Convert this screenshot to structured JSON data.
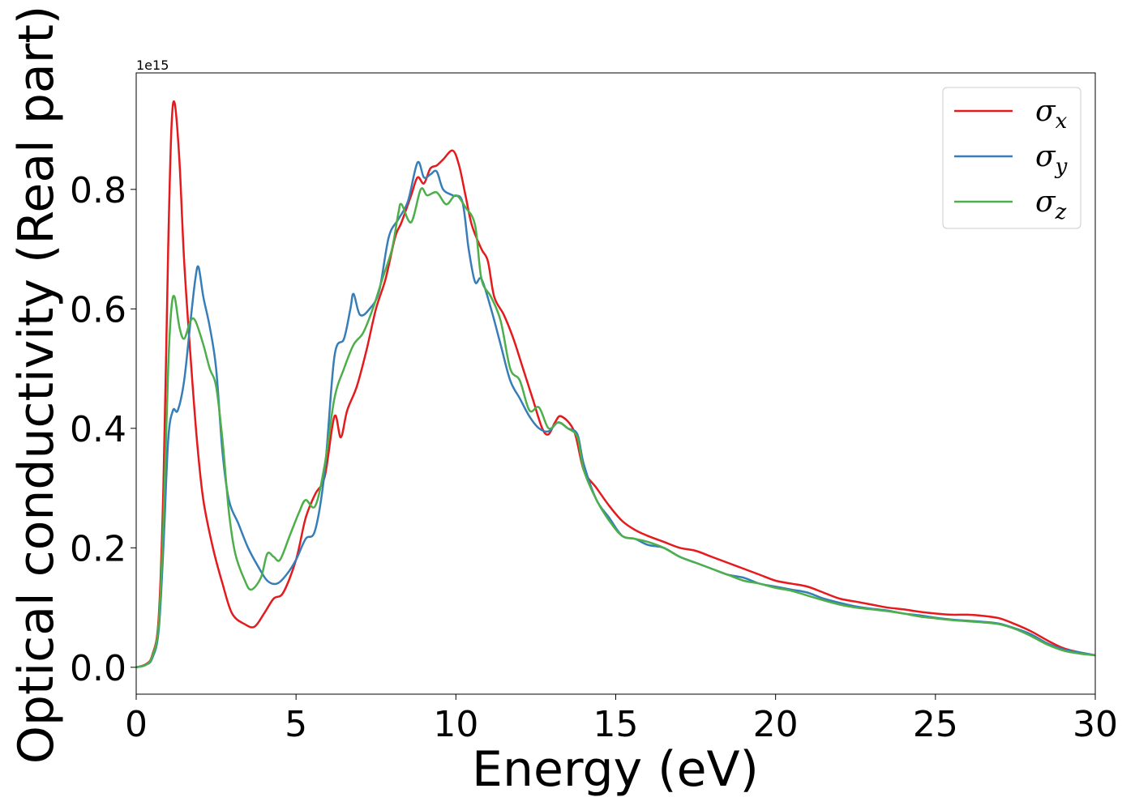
{
  "chart_data": {
    "type": "line",
    "title": "",
    "xlabel": "Energy (eV)",
    "ylabel": "Optical conductivity (Real part)",
    "y_offset_label": "1e15",
    "xlim": [
      0,
      30
    ],
    "ylim": [
      -0.045,
      0.995
    ],
    "xticks": [
      0,
      5,
      10,
      15,
      20,
      25,
      30
    ],
    "xtick_labels": [
      "0",
      "5",
      "10",
      "15",
      "20",
      "25",
      "30"
    ],
    "yticks": [
      0.0,
      0.2,
      0.4,
      0.6,
      0.8
    ],
    "ytick_labels": [
      "0.0",
      "0.2",
      "0.4",
      "0.6",
      "0.8"
    ],
    "grid": false,
    "legend_position": "top-right",
    "series": [
      {
        "name": "σx",
        "label_base": "σ",
        "label_sub": "x",
        "color": "#e41a1c",
        "points": [
          [
            0,
            0
          ],
          [
            0.3,
            0.005
          ],
          [
            0.5,
            0.02
          ],
          [
            0.7,
            0.08
          ],
          [
            0.85,
            0.3
          ],
          [
            1.0,
            0.7
          ],
          [
            1.1,
            0.9
          ],
          [
            1.2,
            0.945
          ],
          [
            1.35,
            0.85
          ],
          [
            1.5,
            0.68
          ],
          [
            1.7,
            0.52
          ],
          [
            1.9,
            0.38
          ],
          [
            2.1,
            0.28
          ],
          [
            2.4,
            0.2
          ],
          [
            2.7,
            0.14
          ],
          [
            3.0,
            0.09
          ],
          [
            3.4,
            0.072
          ],
          [
            3.7,
            0.068
          ],
          [
            4.0,
            0.09
          ],
          [
            4.3,
            0.115
          ],
          [
            4.6,
            0.125
          ],
          [
            5.0,
            0.18
          ],
          [
            5.3,
            0.25
          ],
          [
            5.6,
            0.29
          ],
          [
            5.9,
            0.32
          ],
          [
            6.2,
            0.42
          ],
          [
            6.4,
            0.385
          ],
          [
            6.6,
            0.43
          ],
          [
            6.9,
            0.47
          ],
          [
            7.2,
            0.53
          ],
          [
            7.5,
            0.6
          ],
          [
            7.8,
            0.65
          ],
          [
            8.1,
            0.72
          ],
          [
            8.3,
            0.745
          ],
          [
            8.6,
            0.79
          ],
          [
            8.8,
            0.82
          ],
          [
            9.0,
            0.81
          ],
          [
            9.2,
            0.835
          ],
          [
            9.4,
            0.84
          ],
          [
            9.6,
            0.85
          ],
          [
            9.9,
            0.865
          ],
          [
            10.1,
            0.84
          ],
          [
            10.3,
            0.79
          ],
          [
            10.5,
            0.74
          ],
          [
            10.8,
            0.7
          ],
          [
            11.0,
            0.68
          ],
          [
            11.2,
            0.62
          ],
          [
            11.5,
            0.59
          ],
          [
            11.8,
            0.55
          ],
          [
            12.1,
            0.5
          ],
          [
            12.4,
            0.45
          ],
          [
            12.7,
            0.4
          ],
          [
            12.9,
            0.39
          ],
          [
            13.1,
            0.41
          ],
          [
            13.3,
            0.42
          ],
          [
            13.7,
            0.395
          ],
          [
            14.0,
            0.33
          ],
          [
            14.4,
            0.3
          ],
          [
            14.8,
            0.27
          ],
          [
            15.2,
            0.245
          ],
          [
            15.6,
            0.23
          ],
          [
            16.0,
            0.22
          ],
          [
            16.5,
            0.21
          ],
          [
            17.0,
            0.2
          ],
          [
            17.5,
            0.195
          ],
          [
            18.0,
            0.185
          ],
          [
            18.5,
            0.175
          ],
          [
            19.0,
            0.165
          ],
          [
            19.5,
            0.155
          ],
          [
            20.0,
            0.145
          ],
          [
            20.5,
            0.14
          ],
          [
            21.0,
            0.135
          ],
          [
            21.5,
            0.125
          ],
          [
            22.0,
            0.115
          ],
          [
            22.5,
            0.11
          ],
          [
            23.0,
            0.105
          ],
          [
            23.5,
            0.1
          ],
          [
            24.0,
            0.097
          ],
          [
            24.5,
            0.093
          ],
          [
            25.0,
            0.09
          ],
          [
            25.5,
            0.088
          ],
          [
            26.0,
            0.088
          ],
          [
            26.5,
            0.086
          ],
          [
            27.0,
            0.082
          ],
          [
            27.5,
            0.072
          ],
          [
            28.0,
            0.06
          ],
          [
            28.5,
            0.045
          ],
          [
            29.0,
            0.032
          ],
          [
            29.5,
            0.025
          ],
          [
            30.0,
            0.02
          ]
        ]
      },
      {
        "name": "σy",
        "label_base": "σ",
        "label_sub": "y",
        "color": "#377eb8",
        "points": [
          [
            0,
            0
          ],
          [
            0.3,
            0.004
          ],
          [
            0.5,
            0.015
          ],
          [
            0.7,
            0.06
          ],
          [
            0.85,
            0.2
          ],
          [
            1.0,
            0.38
          ],
          [
            1.15,
            0.43
          ],
          [
            1.3,
            0.43
          ],
          [
            1.5,
            0.48
          ],
          [
            1.7,
            0.58
          ],
          [
            1.85,
            0.65
          ],
          [
            1.95,
            0.67
          ],
          [
            2.1,
            0.62
          ],
          [
            2.3,
            0.57
          ],
          [
            2.5,
            0.5
          ],
          [
            2.7,
            0.36
          ],
          [
            2.9,
            0.28
          ],
          [
            3.2,
            0.24
          ],
          [
            3.5,
            0.2
          ],
          [
            3.8,
            0.17
          ],
          [
            4.1,
            0.145
          ],
          [
            4.4,
            0.14
          ],
          [
            4.7,
            0.155
          ],
          [
            5.0,
            0.18
          ],
          [
            5.3,
            0.215
          ],
          [
            5.6,
            0.23
          ],
          [
            5.9,
            0.33
          ],
          [
            6.2,
            0.52
          ],
          [
            6.5,
            0.55
          ],
          [
            6.7,
            0.6
          ],
          [
            6.8,
            0.625
          ],
          [
            7.0,
            0.59
          ],
          [
            7.3,
            0.6
          ],
          [
            7.6,
            0.63
          ],
          [
            7.9,
            0.72
          ],
          [
            8.2,
            0.75
          ],
          [
            8.5,
            0.78
          ],
          [
            8.8,
            0.845
          ],
          [
            9.0,
            0.82
          ],
          [
            9.2,
            0.825
          ],
          [
            9.4,
            0.83
          ],
          [
            9.6,
            0.8
          ],
          [
            9.9,
            0.79
          ],
          [
            10.2,
            0.78
          ],
          [
            10.4,
            0.7
          ],
          [
            10.6,
            0.645
          ],
          [
            10.8,
            0.65
          ],
          [
            11.1,
            0.6
          ],
          [
            11.4,
            0.54
          ],
          [
            11.7,
            0.48
          ],
          [
            12.0,
            0.45
          ],
          [
            12.3,
            0.42
          ],
          [
            12.6,
            0.4
          ],
          [
            12.9,
            0.395
          ],
          [
            13.2,
            0.41
          ],
          [
            13.5,
            0.4
          ],
          [
            13.8,
            0.39
          ],
          [
            14.0,
            0.34
          ],
          [
            14.4,
            0.28
          ],
          [
            14.8,
            0.25
          ],
          [
            15.2,
            0.22
          ],
          [
            15.6,
            0.215
          ],
          [
            16.0,
            0.205
          ],
          [
            16.5,
            0.2
          ],
          [
            17.0,
            0.185
          ],
          [
            17.5,
            0.175
          ],
          [
            18.0,
            0.165
          ],
          [
            18.5,
            0.155
          ],
          [
            19.0,
            0.15
          ],
          [
            19.5,
            0.14
          ],
          [
            20.0,
            0.135
          ],
          [
            20.5,
            0.13
          ],
          [
            21.0,
            0.125
          ],
          [
            21.5,
            0.115
          ],
          [
            22.0,
            0.108
          ],
          [
            22.5,
            0.102
          ],
          [
            23.0,
            0.098
          ],
          [
            23.5,
            0.095
          ],
          [
            24.0,
            0.09
          ],
          [
            24.5,
            0.087
          ],
          [
            25.0,
            0.083
          ],
          [
            25.5,
            0.08
          ],
          [
            26.0,
            0.078
          ],
          [
            26.5,
            0.076
          ],
          [
            27.0,
            0.073
          ],
          [
            27.5,
            0.065
          ],
          [
            28.0,
            0.055
          ],
          [
            28.5,
            0.04
          ],
          [
            29.0,
            0.03
          ],
          [
            29.5,
            0.025
          ],
          [
            30.0,
            0.02
          ]
        ]
      },
      {
        "name": "σz",
        "label_base": "σ",
        "label_sub": "z",
        "color": "#4daf4a",
        "points": [
          [
            0,
            0
          ],
          [
            0.3,
            0.004
          ],
          [
            0.5,
            0.018
          ],
          [
            0.7,
            0.07
          ],
          [
            0.85,
            0.24
          ],
          [
            1.0,
            0.5
          ],
          [
            1.1,
            0.6
          ],
          [
            1.2,
            0.62
          ],
          [
            1.35,
            0.57
          ],
          [
            1.5,
            0.55
          ],
          [
            1.7,
            0.58
          ],
          [
            1.85,
            0.58
          ],
          [
            2.1,
            0.54
          ],
          [
            2.3,
            0.5
          ],
          [
            2.5,
            0.47
          ],
          [
            2.7,
            0.38
          ],
          [
            2.9,
            0.26
          ],
          [
            3.1,
            0.19
          ],
          [
            3.4,
            0.145
          ],
          [
            3.6,
            0.13
          ],
          [
            3.9,
            0.15
          ],
          [
            4.1,
            0.19
          ],
          [
            4.3,
            0.185
          ],
          [
            4.5,
            0.18
          ],
          [
            4.8,
            0.22
          ],
          [
            5.1,
            0.26
          ],
          [
            5.3,
            0.28
          ],
          [
            5.6,
            0.27
          ],
          [
            5.9,
            0.34
          ],
          [
            6.2,
            0.45
          ],
          [
            6.5,
            0.5
          ],
          [
            6.8,
            0.54
          ],
          [
            7.1,
            0.56
          ],
          [
            7.4,
            0.6
          ],
          [
            7.7,
            0.65
          ],
          [
            8.0,
            0.7
          ],
          [
            8.2,
            0.76
          ],
          [
            8.3,
            0.775
          ],
          [
            8.6,
            0.745
          ],
          [
            8.9,
            0.8
          ],
          [
            9.1,
            0.79
          ],
          [
            9.4,
            0.795
          ],
          [
            9.7,
            0.775
          ],
          [
            10.0,
            0.79
          ],
          [
            10.3,
            0.77
          ],
          [
            10.6,
            0.74
          ],
          [
            10.8,
            0.65
          ],
          [
            11.1,
            0.62
          ],
          [
            11.4,
            0.58
          ],
          [
            11.7,
            0.5
          ],
          [
            12.0,
            0.48
          ],
          [
            12.3,
            0.43
          ],
          [
            12.6,
            0.435
          ],
          [
            12.9,
            0.4
          ],
          [
            13.2,
            0.41
          ],
          [
            13.5,
            0.4
          ],
          [
            13.8,
            0.385
          ],
          [
            14.0,
            0.33
          ],
          [
            14.4,
            0.28
          ],
          [
            14.8,
            0.245
          ],
          [
            15.2,
            0.22
          ],
          [
            15.6,
            0.215
          ],
          [
            16.0,
            0.21
          ],
          [
            16.5,
            0.2
          ],
          [
            17.0,
            0.185
          ],
          [
            17.5,
            0.175
          ],
          [
            18.0,
            0.165
          ],
          [
            18.5,
            0.155
          ],
          [
            19.0,
            0.145
          ],
          [
            19.5,
            0.14
          ],
          [
            20.0,
            0.133
          ],
          [
            20.5,
            0.128
          ],
          [
            21.0,
            0.12
          ],
          [
            21.5,
            0.112
          ],
          [
            22.0,
            0.105
          ],
          [
            22.5,
            0.1
          ],
          [
            23.0,
            0.097
          ],
          [
            23.5,
            0.094
          ],
          [
            24.0,
            0.09
          ],
          [
            24.5,
            0.085
          ],
          [
            25.0,
            0.082
          ],
          [
            25.5,
            0.079
          ],
          [
            26.0,
            0.077
          ],
          [
            26.5,
            0.075
          ],
          [
            27.0,
            0.072
          ],
          [
            27.5,
            0.064
          ],
          [
            28.0,
            0.052
          ],
          [
            28.5,
            0.038
          ],
          [
            29.0,
            0.028
          ],
          [
            29.5,
            0.023
          ],
          [
            30.0,
            0.02
          ]
        ]
      }
    ]
  }
}
